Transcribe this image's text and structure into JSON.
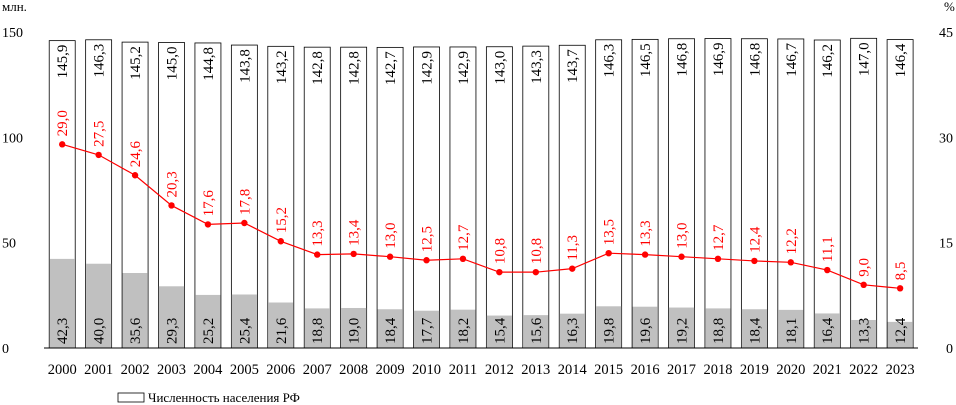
{
  "chart_data": {
    "type": "bar",
    "left_unit": "млн.",
    "right_unit": "%",
    "categories": [
      "2000",
      "2001",
      "2002",
      "2003",
      "2004",
      "2005",
      "2006",
      "2007",
      "2008",
      "2009",
      "2010",
      "2011",
      "2012",
      "2013",
      "2014",
      "2015",
      "2016",
      "2017",
      "2018",
      "2019",
      "2020",
      "2021",
      "2022",
      "2023"
    ],
    "left_axis": {
      "ylim": [
        0,
        150
      ],
      "ticks": [
        "0",
        "50",
        "100",
        "150"
      ]
    },
    "right_axis": {
      "ylim": [
        0,
        45
      ],
      "ticks": [
        "0",
        "15",
        "30",
        "45"
      ]
    },
    "series": [
      {
        "name": "Численность населения РФ",
        "kind": "bar",
        "axis": "left",
        "color": "#ffffff",
        "values": [
          145.9,
          146.3,
          145.2,
          145.0,
          144.8,
          143.8,
          143.2,
          142.8,
          142.8,
          142.7,
          142.9,
          142.9,
          143.0,
          143.3,
          143.7,
          146.3,
          146.5,
          146.8,
          146.9,
          146.8,
          146.7,
          146.2,
          147.0,
          146.4
        ],
        "labels": [
          "145,9",
          "146,3",
          "145,2",
          "145,0",
          "144,8",
          "143,8",
          "143,2",
          "142,8",
          "142,8",
          "142,7",
          "142,9",
          "142,9",
          "143,0",
          "143,3",
          "143,7",
          "146,3",
          "146,5",
          "146,8",
          "146,9",
          "146,8",
          "146,7",
          "146,2",
          "147,0",
          "146,4"
        ]
      },
      {
        "kind": "bar",
        "axis": "left",
        "color": "#c0c0c0",
        "values": [
          42.3,
          40.0,
          35.6,
          29.3,
          25.2,
          25.4,
          21.6,
          18.8,
          19.0,
          18.4,
          17.7,
          18.2,
          15.4,
          15.6,
          16.3,
          19.8,
          19.6,
          19.2,
          18.8,
          18.4,
          18.1,
          16.4,
          13.3,
          12.4
        ],
        "labels": [
          "42,3",
          "40,0",
          "35,6",
          "29,3",
          "25,2",
          "25,4",
          "21,6",
          "18,8",
          "19,0",
          "18,4",
          "17,7",
          "18,2",
          "15,4",
          "15,6",
          "16,3",
          "19,8",
          "19,6",
          "19,2",
          "18,8",
          "18,4",
          "18,1",
          "16,4",
          "13,3",
          "12,4"
        ]
      },
      {
        "kind": "line",
        "axis": "right",
        "color": "#ff0000",
        "values": [
          29.0,
          27.5,
          24.6,
          20.3,
          17.6,
          17.8,
          15.2,
          13.3,
          13.4,
          13.0,
          12.5,
          12.7,
          10.8,
          10.8,
          11.3,
          13.5,
          13.3,
          13.0,
          12.7,
          12.4,
          12.2,
          11.1,
          9.0,
          8.5
        ],
        "labels": [
          "29,0",
          "27,5",
          "24,6",
          "20,3",
          "17,6",
          "17,8",
          "15,2",
          "13,3",
          "13,4",
          "13,0",
          "12,5",
          "12,7",
          "10,8",
          "10,8",
          "11,3",
          "13,5",
          "13,3",
          "13,0",
          "12,7",
          "12,4",
          "12,2",
          "11,1",
          "9,0",
          "8,5"
        ]
      }
    ],
    "legend_entry": "Численность населения РФ",
    "legend_position": "bottom-left",
    "grid": false
  }
}
